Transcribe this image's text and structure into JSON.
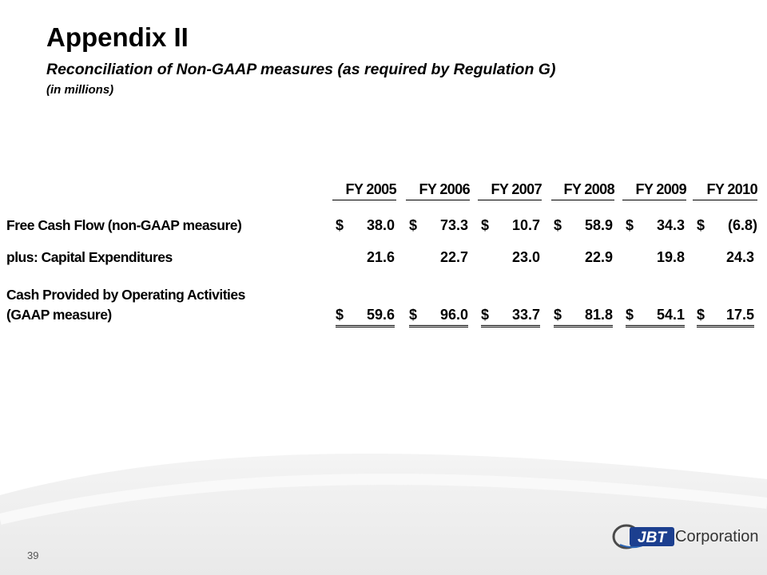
{
  "slide": {
    "title": "Appendix II",
    "subtitle": "Reconciliation of Non-GAAP measures (as required by Regulation G)",
    "units": "(in millions)",
    "page_number": "39"
  },
  "table": {
    "columns": [
      "FY 2005",
      "FY 2006",
      "FY 2007",
      "FY 2008",
      "FY 2009",
      "FY 2010"
    ],
    "rows": [
      {
        "label_line1": "Free Cash Flow (non-GAAP measure)",
        "cells": [
          {
            "cur": "$",
            "val": "38.0"
          },
          {
            "cur": "$",
            "val": "73.3"
          },
          {
            "cur": "$",
            "val": "10.7"
          },
          {
            "cur": "$",
            "val": "58.9"
          },
          {
            "cur": "$",
            "val": "34.3"
          },
          {
            "cur": "$",
            "val": "(6.8)"
          }
        ]
      },
      {
        "label_line1": "plus:  Capital Expenditures",
        "cells": [
          {
            "cur": "",
            "val": "21.6"
          },
          {
            "cur": "",
            "val": "22.7"
          },
          {
            "cur": "",
            "val": "23.0"
          },
          {
            "cur": "",
            "val": "22.9"
          },
          {
            "cur": "",
            "val": "19.8"
          },
          {
            "cur": "",
            "val": "24.3"
          }
        ]
      },
      {
        "label_line1": "Cash Provided by Operating Activities",
        "label_line2": "(GAAP measure)",
        "cells": [
          {
            "cur": "$",
            "val": "59.6"
          },
          {
            "cur": "$",
            "val": "96.0"
          },
          {
            "cur": "$",
            "val": "33.7"
          },
          {
            "cur": "$",
            "val": "81.8"
          },
          {
            "cur": "$",
            "val": "54.1"
          },
          {
            "cur": "$",
            "val": "17.5"
          }
        ]
      }
    ]
  },
  "logo": {
    "mark_text": "JBT",
    "text": "Corporation"
  }
}
